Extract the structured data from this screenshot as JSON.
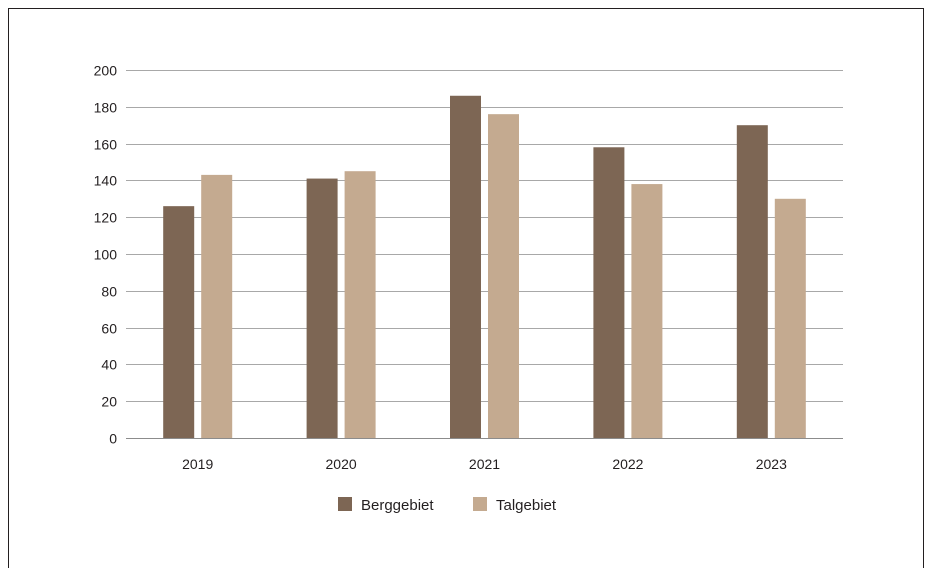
{
  "chart_data": {
    "type": "bar",
    "categories": [
      "2019",
      "2020",
      "2021",
      "2022",
      "2023"
    ],
    "series": [
      {
        "name": "Berggebiet",
        "values": [
          126,
          141,
          186,
          158,
          170
        ],
        "color": "#7d6654"
      },
      {
        "name": "Talgebiet",
        "values": [
          143,
          145,
          176,
          138,
          130
        ],
        "color": "#c4aa90"
      }
    ],
    "title": "",
    "xlabel": "",
    "ylabel": "",
    "ylim": [
      0,
      200
    ],
    "yticks": [
      0,
      20,
      40,
      60,
      80,
      100,
      120,
      140,
      160,
      180,
      200
    ],
    "grid": true,
    "legend_position": "bottom"
  }
}
